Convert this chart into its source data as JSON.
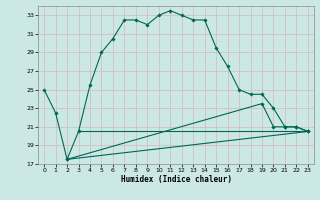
{
  "xlabel": "Humidex (Indice chaleur)",
  "bg_color": "#cce8e4",
  "grid_color": "#aed4ce",
  "line_color": "#006655",
  "xlim": [
    -0.5,
    23.5
  ],
  "ylim": [
    17,
    34
  ],
  "yticks": [
    17,
    19,
    21,
    23,
    25,
    27,
    29,
    31,
    33
  ],
  "xticks": [
    0,
    1,
    2,
    3,
    4,
    5,
    6,
    7,
    8,
    9,
    10,
    11,
    12,
    13,
    14,
    15,
    16,
    17,
    18,
    19,
    20,
    21,
    22,
    23
  ],
  "curve1_x": [
    0,
    1,
    2,
    3,
    4,
    5,
    6,
    7,
    8,
    9,
    10,
    11,
    12,
    13,
    14,
    15,
    16,
    17,
    18,
    19,
    20,
    21,
    22,
    23
  ],
  "curve1_y": [
    25,
    22.5,
    17.5,
    20.5,
    25.5,
    29,
    30.5,
    32.5,
    32.5,
    32,
    33,
    33.5,
    33,
    32.5,
    32.5,
    29.5,
    27.5,
    25,
    24.5,
    24.5,
    23,
    21,
    21,
    20.5
  ],
  "curve2_x": [
    2,
    23
  ],
  "curve2_y": [
    17.5,
    20.5
  ],
  "curve3_x": [
    2,
    19,
    20,
    21,
    22,
    23
  ],
  "curve3_y": [
    17.5,
    23.5,
    21.0,
    21.0,
    21.0,
    20.5
  ],
  "curve4_x": [
    3,
    23
  ],
  "curve4_y": [
    20.5,
    20.5
  ]
}
